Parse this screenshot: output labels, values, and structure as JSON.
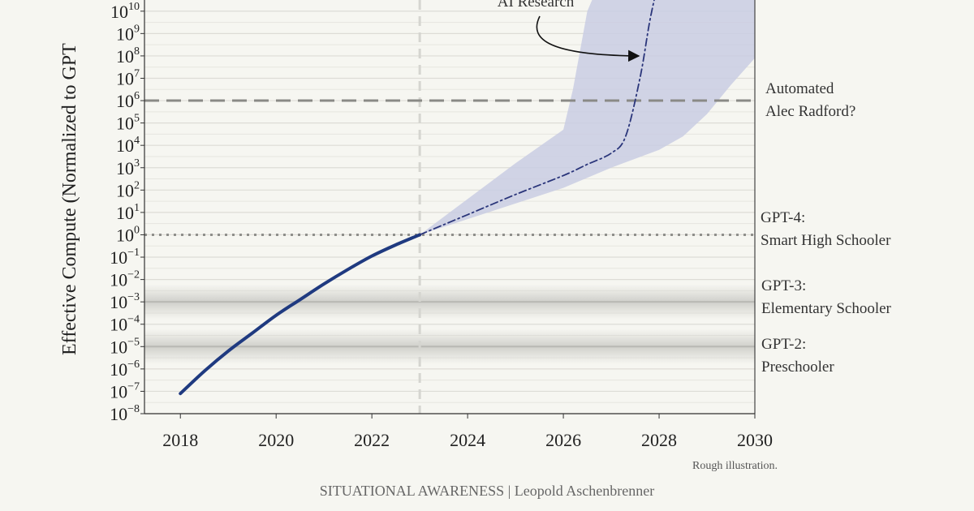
{
  "chart_data": {
    "type": "line",
    "ylabel": "Effective Compute (Normalized to GPT",
    "x_ticks": [
      2018,
      2020,
      2022,
      2024,
      2026,
      2028,
      2030
    ],
    "xlim": [
      2017.25,
      2030
    ],
    "ylim_exponent": [
      -8,
      10.5
    ],
    "y_scale": "log10",
    "y_tick_exponents": [
      -8,
      -7,
      -6,
      -5,
      -4,
      -3,
      -2,
      -1,
      0,
      1,
      2,
      3,
      4,
      5,
      6,
      7,
      8,
      9,
      10
    ],
    "grid": "horizontal",
    "series": [
      {
        "style": "solid",
        "color": "#1f3a80",
        "points": [
          [
            2018.0,
            -7.1
          ],
          [
            2018.5,
            -6.1
          ],
          [
            2019.0,
            -5.2
          ],
          [
            2019.5,
            -4.4
          ],
          [
            2020.0,
            -3.6
          ],
          [
            2020.5,
            -2.9
          ],
          [
            2021.0,
            -2.2
          ],
          [
            2021.5,
            -1.55
          ],
          [
            2022.0,
            -0.95
          ],
          [
            2022.5,
            -0.45
          ],
          [
            2023.0,
            0.0
          ]
        ]
      },
      {
        "style": "dash-dot",
        "color": "#2a357a",
        "points": [
          [
            2023.0,
            0.0
          ],
          [
            2024.0,
            0.9
          ],
          [
            2025.0,
            1.8
          ],
          [
            2026.0,
            2.65
          ],
          [
            2026.5,
            3.15
          ],
          [
            2027.0,
            3.65
          ],
          [
            2027.3,
            4.4
          ],
          [
            2027.6,
            7.0
          ],
          [
            2027.8,
            9.5
          ],
          [
            2027.95,
            11.0
          ]
        ]
      }
    ],
    "band": {
      "color": "#c9cde3",
      "upper": [
        [
          2023.0,
          0.0
        ],
        [
          2024.0,
          1.6
        ],
        [
          2025.0,
          3.2
        ],
        [
          2026.0,
          4.7
        ],
        [
          2026.2,
          6.5
        ],
        [
          2026.5,
          10.0
        ],
        [
          2026.7,
          11.0
        ]
      ],
      "lower": [
        [
          2030.0,
          7.9
        ],
        [
          2029.5,
          6.7
        ],
        [
          2029.0,
          5.4
        ],
        [
          2028.5,
          4.4
        ],
        [
          2028.0,
          3.8
        ],
        [
          2027.0,
          3.0
        ],
        [
          2026.0,
          2.1
        ],
        [
          2025.0,
          1.4
        ],
        [
          2024.0,
          0.7
        ],
        [
          2023.0,
          0.0
        ]
      ],
      "right_edge_top": [
        2030.0,
        11.0
      ]
    },
    "reference_lines": [
      {
        "y_exponent": 6,
        "style": "dashed",
        "label_lines": [
          "Automated",
          "Alec Radford?"
        ]
      },
      {
        "y_exponent": 0,
        "style": "dotted",
        "label_lines": [
          "GPT-4:",
          "Smart High Schooler"
        ]
      }
    ],
    "shaded_levels": [
      {
        "y_exponent": -3,
        "label_lines": [
          "GPT-3:",
          "Elementary Schooler"
        ]
      },
      {
        "y_exponent": -5,
        "label_lines": [
          "GPT-2:",
          "Preschooler"
        ]
      }
    ],
    "vertical_marker_x": 2023,
    "annotations": {
      "ai_research": "AI Research",
      "note": "Rough illustration.",
      "credit": "SITUATIONAL AWARENESS | Leopold Aschenbrenner"
    }
  }
}
